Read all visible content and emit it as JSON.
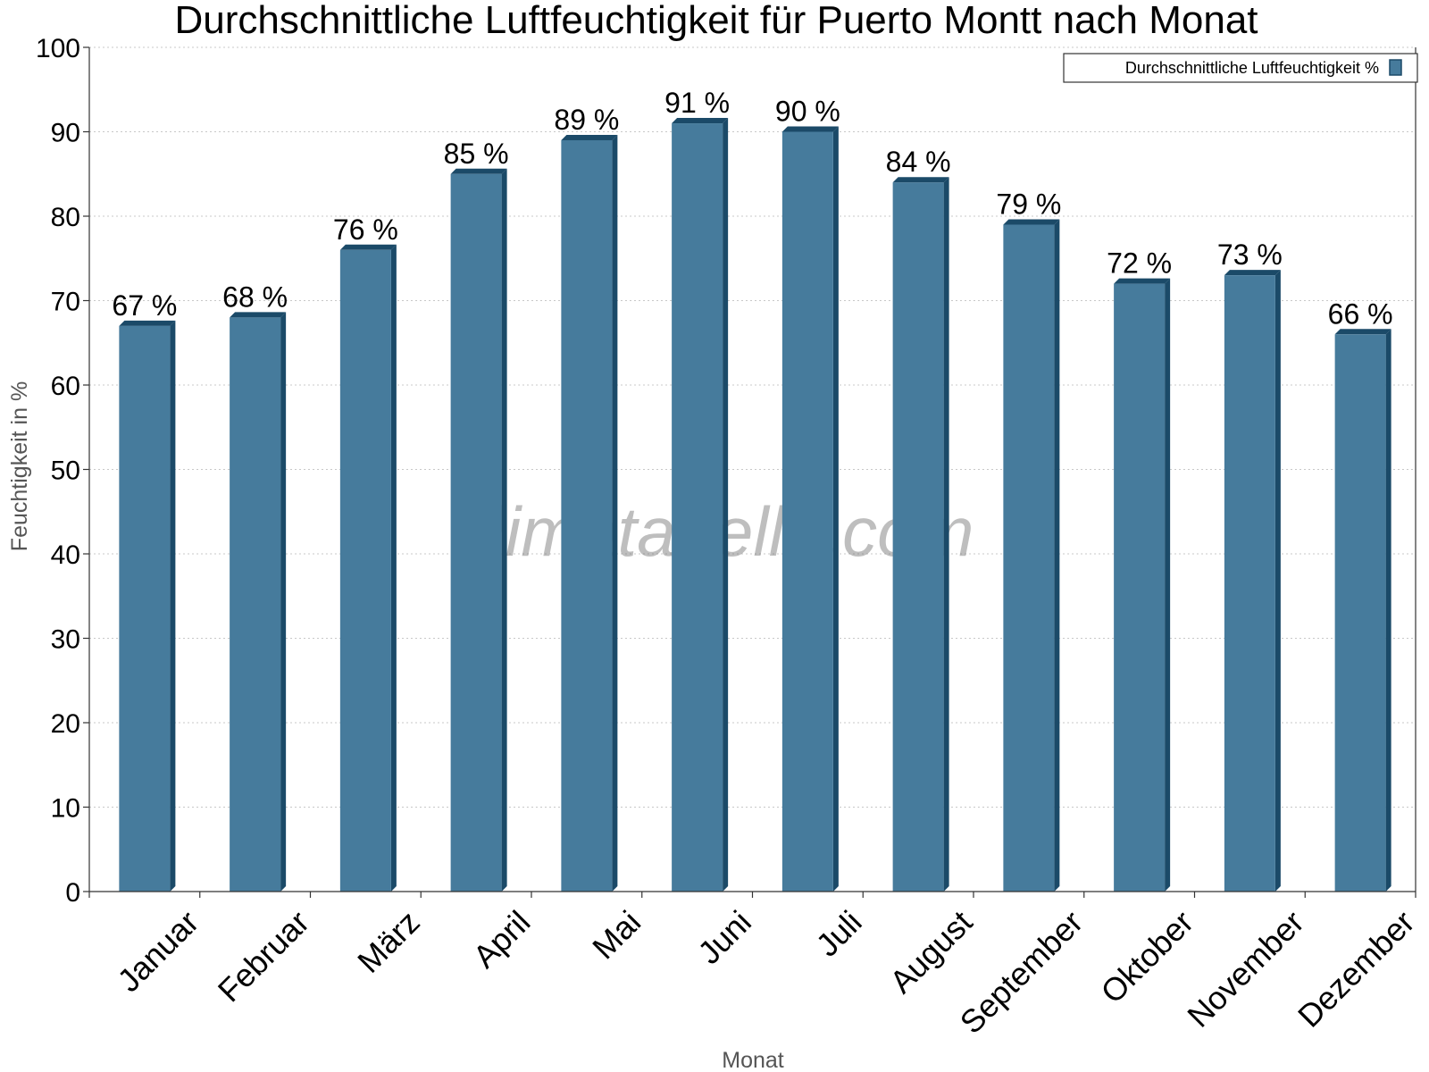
{
  "chart_data": {
    "type": "bar",
    "title": "Durchschnittliche Luftfeuchtigkeit für Puerto Montt nach Monat",
    "xlabel": "Monat",
    "ylabel": "Feuchtigkeit in %",
    "categories": [
      "Januar",
      "Februar",
      "März",
      "April",
      "Mai",
      "Juni",
      "Juli",
      "August",
      "September",
      "Oktober",
      "November",
      "Dezember"
    ],
    "series": [
      {
        "name": "Durchschnittliche Luftfeuchtigkeit %",
        "values": [
          67,
          68,
          76,
          85,
          89,
          91,
          90,
          84,
          79,
          72,
          73,
          66
        ],
        "data_labels": [
          "67 %",
          "68 %",
          "76 %",
          "85 %",
          "89 %",
          "91 %",
          "90 %",
          "84 %",
          "79 %",
          "72 %",
          "73 %",
          "66 %"
        ],
        "color": "#467b9c",
        "edge_color": "#1b4a68"
      }
    ],
    "ylim": [
      0,
      100
    ],
    "yticks": [
      0,
      10,
      20,
      30,
      40,
      50,
      60,
      70,
      80,
      90,
      100
    ],
    "grid": true,
    "legend_position": "top-right"
  },
  "watermark": "klimatabelle.com"
}
